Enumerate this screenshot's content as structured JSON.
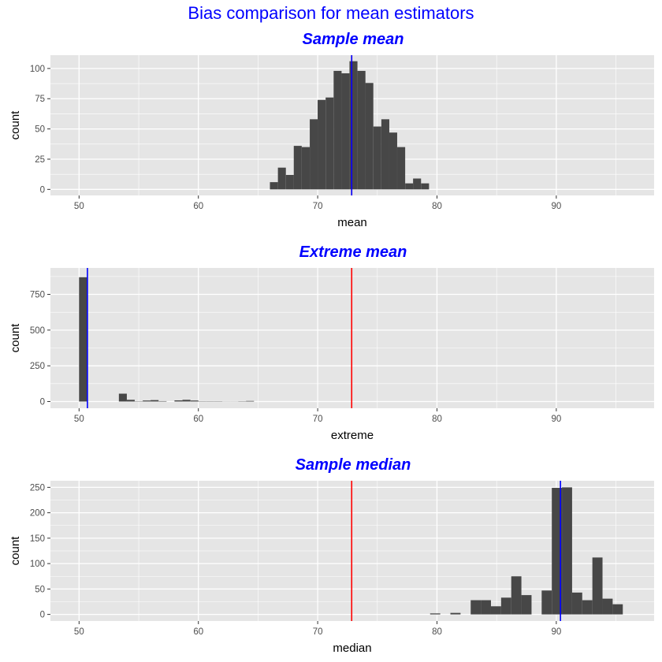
{
  "suptitle": "Bias comparison for mean estimators",
  "colors": {
    "title": "#0000ff",
    "bar": "#474747",
    "panel": "#e5e5e5",
    "grid": "#ffffff",
    "true_line": "#ff0000",
    "estimate_line": "#0000ff"
  },
  "chart_data": [
    {
      "type": "bar",
      "title": "Sample mean",
      "xlabel": "mean",
      "ylabel": "count",
      "xlim": [
        47.6,
        98.2
      ],
      "ylim": [
        -5,
        111
      ],
      "xticks": [
        50,
        60,
        70,
        80,
        90
      ],
      "yticks": [
        0,
        25,
        50,
        75,
        100
      ],
      "binwidth": 0.667,
      "bins_x": [
        66.33,
        67.0,
        67.67,
        68.33,
        69.0,
        69.67,
        70.33,
        71.0,
        71.67,
        72.33,
        73.0,
        73.67,
        74.33,
        75.0,
        75.67,
        76.33,
        77.0,
        77.67,
        78.33,
        79.0,
        79.67
      ],
      "bins_y": [
        6,
        18,
        12,
        36,
        35,
        58,
        74,
        76,
        98,
        96,
        106,
        98,
        88,
        52,
        58,
        47,
        35,
        5,
        9,
        5,
        0
      ],
      "vlines": [
        {
          "x": 72.85,
          "color": "red"
        },
        {
          "x": 72.85,
          "color": "blue"
        }
      ]
    },
    {
      "type": "bar",
      "title": "Extreme mean",
      "xlabel": "extreme",
      "ylabel": "count",
      "xlim": [
        47.6,
        98.2
      ],
      "ylim": [
        -47,
        935
      ],
      "xticks": [
        50,
        60,
        70,
        80,
        90
      ],
      "yticks": [
        0,
        250,
        500,
        750
      ],
      "binwidth": 0.667,
      "bins_x": [
        50.33,
        51.0,
        51.67,
        52.33,
        53.0,
        53.67,
        54.33,
        55.0,
        55.67,
        56.33,
        57.0,
        57.67,
        58.33,
        59.0,
        59.67,
        60.33,
        61.0,
        61.67,
        62.33,
        63.0,
        63.67,
        64.33
      ],
      "bins_y": [
        870,
        0,
        0,
        0,
        0,
        55,
        12,
        2,
        7,
        10,
        3,
        0,
        8,
        12,
        7,
        2,
        2,
        2,
        1,
        1,
        2,
        4
      ],
      "vlines": [
        {
          "x": 72.85,
          "color": "red"
        },
        {
          "x": 50.7,
          "color": "blue"
        }
      ]
    },
    {
      "type": "bar",
      "title": "Sample median",
      "xlabel": "median",
      "ylabel": "count",
      "xlim": [
        47.6,
        98.2
      ],
      "ylim": [
        -13,
        263
      ],
      "xticks": [
        50,
        60,
        70,
        80,
        90
      ],
      "yticks": [
        0,
        50,
        100,
        150,
        200,
        250
      ],
      "binwidth": 0.85,
      "bins_x": [
        79.85,
        81.55,
        83.25,
        84.1,
        84.95,
        85.8,
        86.65,
        87.5,
        89.2,
        90.05,
        90.9,
        91.75,
        92.6,
        93.45,
        94.3,
        95.15
      ],
      "bins_y": [
        2,
        3,
        28,
        28,
        16,
        33,
        75,
        38,
        47,
        249,
        250,
        43,
        28,
        112,
        31,
        20
      ],
      "vlines": [
        {
          "x": 72.85,
          "color": "red"
        },
        {
          "x": 90.35,
          "color": "blue"
        }
      ]
    }
  ]
}
